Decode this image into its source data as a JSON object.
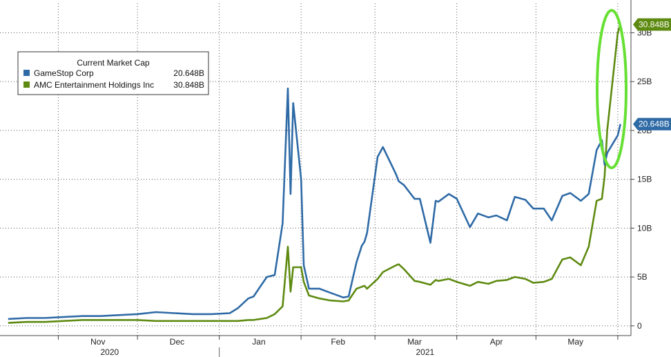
{
  "chart_data": {
    "type": "line",
    "legend": {
      "title": "Current Market Cap",
      "placement": "top-left"
    },
    "x_axis": {
      "months": [
        "Nov",
        "Dec",
        "Jan",
        "Feb",
        "Mar",
        "Apr",
        "May"
      ],
      "years": [
        "2020",
        "2021"
      ]
    },
    "y_axis": {
      "ticks": [
        "0",
        "5B",
        "10B",
        "15B",
        "20B",
        "25B",
        "30B"
      ],
      "tick_values": [
        0,
        5,
        10,
        15,
        20,
        25,
        30
      ],
      "ylim": [
        -1,
        33
      ],
      "side": "right",
      "grid": "dotted"
    },
    "x": [
      "2020-10-13",
      "2020-10-20",
      "2020-10-27",
      "2020-11-03",
      "2020-11-10",
      "2020-11-17",
      "2020-11-24",
      "2020-12-01",
      "2020-12-08",
      "2020-12-15",
      "2020-12-22",
      "2020-12-29",
      "2021-01-05",
      "2021-01-08",
      "2021-01-12",
      "2021-01-14",
      "2021-01-19",
      "2021-01-22",
      "2021-01-25",
      "2021-01-27",
      "2021-01-28",
      "2021-01-29",
      "2021-02-01",
      "2021-02-02",
      "2021-02-04",
      "2021-02-08",
      "2021-02-12",
      "2021-02-17",
      "2021-02-19",
      "2021-02-22",
      "2021-02-24",
      "2021-02-25",
      "2021-02-26",
      "2021-03-02",
      "2021-03-04",
      "2021-03-09",
      "2021-03-10",
      "2021-03-12",
      "2021-03-16",
      "2021-03-18",
      "2021-03-22",
      "2021-03-24",
      "2021-03-25",
      "2021-03-29",
      "2021-04-01",
      "2021-04-06",
      "2021-04-09",
      "2021-04-13",
      "2021-04-16",
      "2021-04-20",
      "2021-04-23",
      "2021-04-27",
      "2021-04-30",
      "2021-05-04",
      "2021-05-07",
      "2021-05-11",
      "2021-05-14",
      "2021-05-18",
      "2021-05-21",
      "2021-05-24",
      "2021-05-26",
      "2021-05-27",
      "2021-05-28",
      "2021-06-01",
      "2021-06-02"
    ],
    "series": [
      {
        "name": "GameStop Corp",
        "color": "#2e6aa6",
        "current_label": "20.648B",
        "values": [
          0.7,
          0.8,
          0.8,
          0.9,
          1.0,
          1.0,
          1.1,
          1.2,
          1.4,
          1.3,
          1.2,
          1.2,
          1.3,
          1.8,
          2.8,
          3.0,
          5.0,
          5.2,
          10.5,
          24.3,
          13.5,
          22.8,
          15.0,
          6.2,
          3.8,
          3.8,
          3.4,
          2.9,
          3.0,
          6.5,
          8.2,
          8.6,
          9.5,
          17.3,
          18.3,
          15.5,
          14.8,
          14.4,
          13.0,
          13.0,
          8.5,
          12.8,
          12.7,
          13.5,
          13.0,
          10.1,
          11.5,
          11.1,
          11.3,
          10.8,
          13.2,
          12.9,
          12.0,
          12.0,
          10.8,
          13.3,
          13.6,
          12.8,
          13.5,
          18.0,
          19.0,
          16.5,
          17.7,
          19.5,
          20.648
        ]
      },
      {
        "name": "AMC Entertainment Holdings Inc",
        "color": "#5d8a10",
        "current_label": "30.848B",
        "values": [
          0.3,
          0.4,
          0.4,
          0.5,
          0.6,
          0.6,
          0.6,
          0.6,
          0.5,
          0.5,
          0.5,
          0.5,
          0.5,
          0.5,
          0.6,
          0.6,
          0.8,
          1.2,
          2.0,
          8.1,
          3.5,
          6.0,
          6.0,
          4.5,
          3.1,
          2.8,
          2.6,
          2.5,
          2.6,
          3.8,
          4.0,
          4.1,
          3.8,
          4.8,
          5.5,
          6.2,
          6.3,
          5.8,
          4.6,
          4.5,
          4.2,
          4.7,
          4.6,
          4.8,
          4.5,
          4.1,
          4.5,
          4.3,
          4.6,
          4.7,
          5.0,
          4.8,
          4.4,
          4.5,
          4.8,
          6.8,
          7.0,
          6.2,
          8.1,
          12.8,
          13.0,
          15.3,
          20.0,
          30.0,
          30.848
        ]
      }
    ],
    "annotation": {
      "type": "ellipse",
      "color": "#66e033",
      "target": "late May spike"
    }
  }
}
